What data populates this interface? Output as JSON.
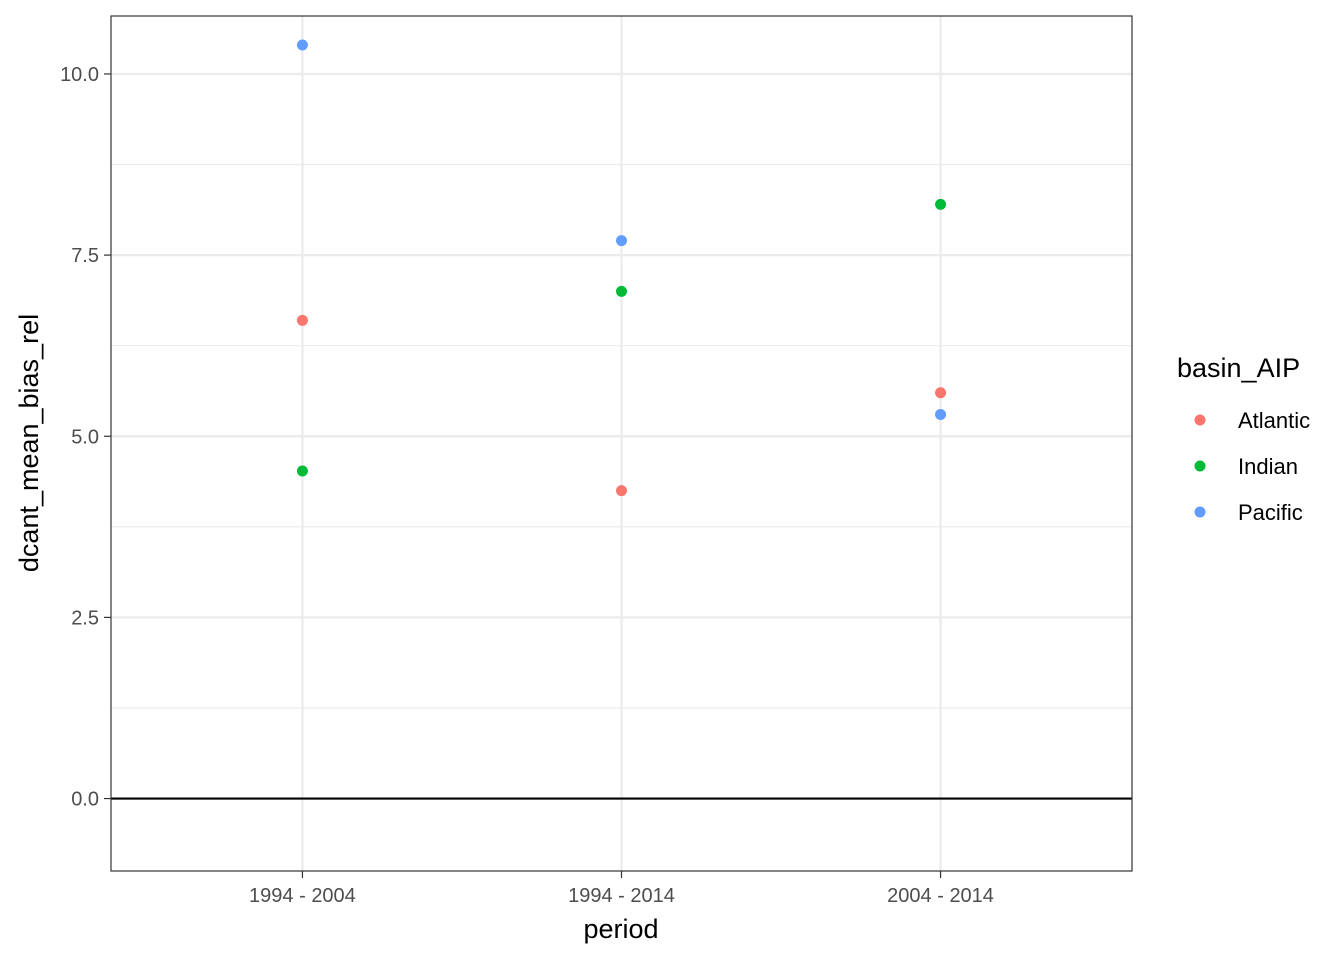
{
  "chart_data": {
    "type": "scatter",
    "xlabel": "period",
    "ylabel": "dcant_mean_bias_rel",
    "categories": [
      "1994 - 2004",
      "1994 - 2014",
      "2004 - 2014"
    ],
    "ylim": [
      -1.0,
      10.8
    ],
    "yticks": [
      0.0,
      2.5,
      5.0,
      7.5,
      10.0
    ],
    "ytick_labels": [
      "0.0",
      "2.5",
      "5.0",
      "7.5",
      "10.0"
    ],
    "hline": 0,
    "grid": true,
    "legend": {
      "title": "basin_AIP",
      "position": "right"
    },
    "series": [
      {
        "name": "Atlantic",
        "color": "#F8766D",
        "values": [
          6.6,
          4.25,
          5.6
        ]
      },
      {
        "name": "Indian",
        "color": "#00BA38",
        "values": [
          4.52,
          7.0,
          8.2
        ]
      },
      {
        "name": "Pacific",
        "color": "#619CFF",
        "values": [
          10.4,
          7.7,
          5.3
        ]
      }
    ]
  }
}
